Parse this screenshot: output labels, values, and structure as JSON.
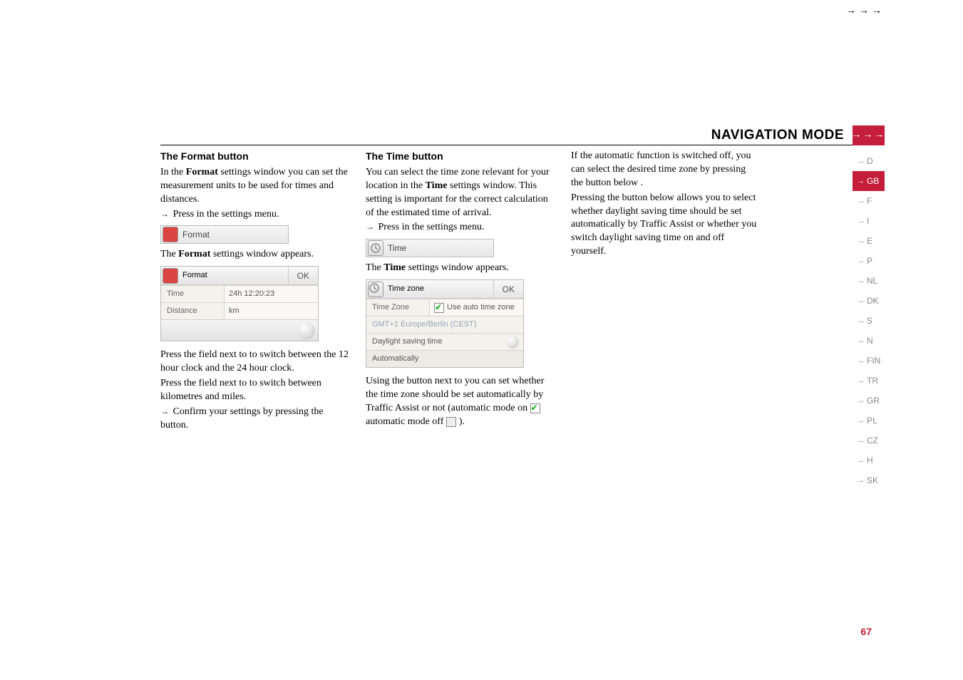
{
  "header": {
    "title": "NAVIGATION MODE",
    "crop_arrows": "→→→",
    "corner_arrows": "→→→"
  },
  "page_number": "67",
  "side_tabs": {
    "items": [
      {
        "label": "D",
        "active": false
      },
      {
        "label": "GB",
        "active": true
      },
      {
        "label": "F",
        "active": false
      },
      {
        "label": "I",
        "active": false
      },
      {
        "label": "E",
        "active": false
      },
      {
        "label": "P",
        "active": false
      },
      {
        "label": "NL",
        "active": false
      },
      {
        "label": "DK",
        "active": false
      },
      {
        "label": "S",
        "active": false
      },
      {
        "label": "N",
        "active": false
      },
      {
        "label": "FIN",
        "active": false
      },
      {
        "label": "TR",
        "active": false
      },
      {
        "label": "GR",
        "active": false
      },
      {
        "label": "PL",
        "active": false
      },
      {
        "label": "CZ",
        "active": false
      },
      {
        "label": "H",
        "active": false
      },
      {
        "label": "SK",
        "active": false
      }
    ]
  },
  "col1": {
    "heading": "The Format button",
    "p1a": "In the ",
    "p1b": "Format",
    "p1c": " settings window you can set the measurement units to be used for times and distances.",
    "press_line_a": "Press ",
    "press_line_b": " in the settings menu.",
    "strip_label": "Format",
    "caption_a": "The ",
    "caption_b": "Format",
    "caption_c": " settings window appears.",
    "table": {
      "header_label": "Format",
      "ok": "OK",
      "rows": [
        {
          "c1": "Time",
          "c2": "24h 12:20:23"
        },
        {
          "c1": "Distance",
          "c2": "km"
        }
      ]
    },
    "after1": "Press the field next to        to switch between the 12 hour clock and the 24 hour clock.",
    "after2": "Press the field next to              to switch between kilometres and miles.",
    "confirm_a": "Confirm your settings by pressing the ",
    "confirm_b": " button."
  },
  "col2": {
    "heading": "The Time button",
    "p1a": "You can select the time zone relevant for your location in the ",
    "p1b": "Time",
    "p1c": " settings window. This setting is important for the correct calculation of the estimated time of arrival.",
    "press_line_a": "Press ",
    "press_line_b": " in the settings menu.",
    "strip_label": "Time",
    "caption_a": "The ",
    "caption_b": "Time",
    "caption_c": " settings window appears.",
    "table": {
      "header_label": "Time zone",
      "ok": "OK",
      "row1_c1": "Time Zone",
      "row1_c2": "Use auto time zone",
      "row2_full": "GMT+1 Europe/Berlin (CEST)",
      "row3_full": "Daylight saving time",
      "row4_full": "Automatically"
    },
    "after_a": "Using the button next to               you can set whether the time zone should be set automatically by Traffic Assist or not (automatic mode on ",
    "after_b": " automatic mode off ",
    "after_c": ")."
  },
  "col3": {
    "p1": "If the automatic function is switched off, you can select the desired time zone by pressing the button below                   .",
    "p2": "Pressing the button below                         allows you to select whether daylight saving time should be set automatically by Traffic Assist or whether you switch daylight saving time on and off yourself."
  },
  "colors": {
    "brand_red": "#c41e3a",
    "tab_inactive_text": "#888888",
    "body_text": "#000000",
    "ui_border": "#bbbbbb",
    "ui_bg": "#f4f2ed"
  },
  "typography": {
    "body_family": "Garamond",
    "body_size_pt": 11,
    "heading_family": "Eurostile",
    "heading_size_pt": 11,
    "header_title_size_pt": 15
  }
}
